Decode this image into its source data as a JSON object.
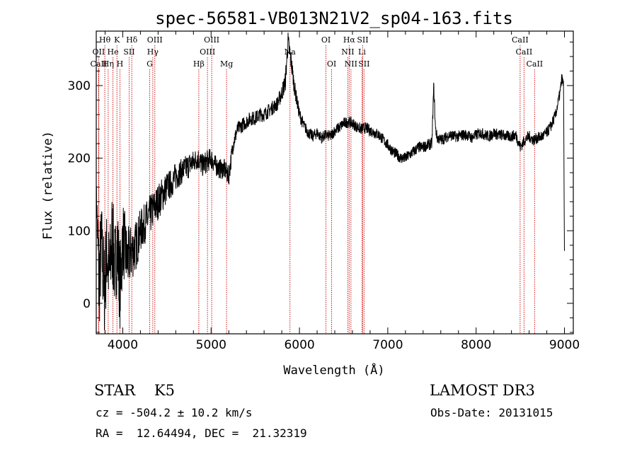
{
  "chart_data": {
    "type": "line",
    "title": "spec-56581-VB013N21V2_sp04-163.fits",
    "xlabel": "Wavelength (Å)",
    "ylabel": "Flux (relative)",
    "xlim": [
      3700,
      9100
    ],
    "ylim": [
      -42,
      375
    ],
    "xticks": [
      4000,
      5000,
      6000,
      7000,
      8000,
      9000
    ],
    "yticks": [
      0,
      100,
      200,
      300
    ],
    "colors": {
      "spectrum": "#000000",
      "lines": "#cc0000"
    },
    "spectral_lines": [
      {
        "label": "Hθ",
        "x": 3797,
        "row": 0
      },
      {
        "label": "OII",
        "x": 3727,
        "row": 1
      },
      {
        "label": "CaII",
        "x": 3727,
        "row": 2
      },
      {
        "label": "Hη",
        "x": 3835,
        "row": 2
      },
      {
        "label": "K",
        "x": 3934,
        "row": 0
      },
      {
        "label": "He",
        "x": 3889,
        "row": 1
      },
      {
        "label": "H",
        "x": 3968,
        "row": 2
      },
      {
        "label": "SII",
        "x": 4072,
        "row": 1
      },
      {
        "label": "Hδ",
        "x": 4102,
        "row": 0
      },
      {
        "label": "OIII",
        "x": 4363,
        "row": 0
      },
      {
        "label": "Hγ",
        "x": 4340,
        "row": 1
      },
      {
        "label": "G",
        "x": 4305,
        "row": 2
      },
      {
        "label": "Hβ",
        "x": 4861,
        "row": 2
      },
      {
        "label": "OIII",
        "x": 5007,
        "row": 0
      },
      {
        "label": "OIII",
        "x": 4959,
        "row": 1
      },
      {
        "label": "Mg",
        "x": 5175,
        "row": 2
      },
      {
        "label": "Na",
        "x": 5893,
        "row": 1
      },
      {
        "label": "OI",
        "x": 6300,
        "row": 0
      },
      {
        "label": "OI",
        "x": 6364,
        "row": 2
      },
      {
        "label": "Hα",
        "x": 6563,
        "row": 0
      },
      {
        "label": "SII",
        "x": 6716,
        "row": 0
      },
      {
        "label": "NII",
        "x": 6548,
        "row": 1
      },
      {
        "label": "Li",
        "x": 6708,
        "row": 1
      },
      {
        "label": "NII",
        "x": 6583,
        "row": 2
      },
      {
        "label": "SII",
        "x": 6731,
        "row": 2
      },
      {
        "label": "CaII",
        "x": 8498,
        "row": 0
      },
      {
        "label": "CaII",
        "x": 8542,
        "row": 1
      },
      {
        "label": "CaII",
        "x": 8662,
        "row": 2
      }
    ],
    "spectrum": {
      "name": "flux",
      "x": [
        3700,
        3730,
        3760,
        3790,
        3820,
        3850,
        3880,
        3910,
        3940,
        3970,
        4000,
        4050,
        4100,
        4150,
        4200,
        4250,
        4300,
        4350,
        4400,
        4450,
        4500,
        4550,
        4600,
        4650,
        4700,
        4750,
        4800,
        4850,
        4900,
        4950,
        5000,
        5050,
        5100,
        5150,
        5200,
        5250,
        5300,
        5350,
        5400,
        5450,
        5500,
        5550,
        5600,
        5650,
        5700,
        5750,
        5800,
        5840,
        5870,
        5890,
        5910,
        5940,
        5970,
        6000,
        6050,
        6100,
        6150,
        6200,
        6250,
        6300,
        6350,
        6400,
        6450,
        6500,
        6550,
        6600,
        6650,
        6700,
        6750,
        6800,
        6850,
        6900,
        6950,
        7000,
        7050,
        7100,
        7150,
        7200,
        7250,
        7300,
        7350,
        7400,
        7450,
        7500,
        7520,
        7540,
        7560,
        7600,
        7650,
        7700,
        7750,
        7800,
        7850,
        7900,
        7950,
        8000,
        8050,
        8100,
        8150,
        8200,
        8250,
        8300,
        8350,
        8400,
        8450,
        8500,
        8550,
        8600,
        8650,
        8700,
        8750,
        8800,
        8850,
        8900,
        8950,
        8970,
        8990,
        9000
      ],
      "y": [
        160,
        30,
        80,
        20,
        70,
        40,
        90,
        50,
        80,
        20,
        90,
        60,
        70,
        80,
        100,
        110,
        120,
        130,
        140,
        150,
        160,
        165,
        175,
        180,
        185,
        190,
        195,
        200,
        190,
        195,
        200,
        190,
        185,
        185,
        175,
        220,
        240,
        245,
        250,
        255,
        255,
        260,
        260,
        265,
        270,
        275,
        290,
        305,
        360,
        345,
        330,
        300,
        280,
        260,
        245,
        235,
        230,
        235,
        228,
        232,
        230,
        238,
        242,
        248,
        250,
        248,
        243,
        240,
        242,
        238,
        235,
        232,
        225,
        218,
        210,
        205,
        200,
        200,
        205,
        210,
        215,
        215,
        218,
        220,
        300,
        240,
        228,
        225,
        228,
        232,
        230,
        230,
        232,
        232,
        228,
        232,
        235,
        232,
        230,
        235,
        232,
        232,
        230,
        230,
        232,
        215,
        225,
        230,
        225,
        228,
        230,
        235,
        245,
        260,
        290,
        310,
        300,
        60
      ],
      "jitter": [
        8,
        80,
        60,
        70,
        60,
        60,
        70,
        60,
        60,
        60,
        55,
        45,
        40,
        35,
        30,
        28,
        28,
        26,
        25,
        25,
        22,
        20,
        20,
        18,
        18,
        18,
        16,
        16,
        16,
        16,
        15,
        14,
        14,
        14,
        14,
        12,
        10,
        10,
        10,
        10,
        10,
        10,
        10,
        10,
        10,
        10,
        12,
        14,
        16,
        16,
        14,
        12,
        10,
        10,
        8,
        8,
        8,
        8,
        8,
        8,
        8,
        8,
        8,
        8,
        8,
        8,
        8,
        8,
        8,
        8,
        8,
        8,
        8,
        8,
        8,
        8,
        8,
        8,
        8,
        8,
        8,
        8,
        8,
        8,
        8,
        8,
        8,
        8,
        8,
        8,
        8,
        8,
        8,
        8,
        8,
        8,
        8,
        8,
        8,
        8,
        8,
        8,
        8,
        8,
        8,
        8,
        8,
        8,
        8,
        8,
        8,
        8,
        8,
        8,
        8,
        8,
        8,
        8
      ]
    }
  },
  "footer": {
    "object": "STAR    K5",
    "survey": "LAMOST DR3",
    "velocity": "cz = -504.2 ± 10.2 km/s",
    "obs_date": "Obs-Date: 20131015",
    "coords": "RA =  12.64494, DEC =  21.32319"
  }
}
